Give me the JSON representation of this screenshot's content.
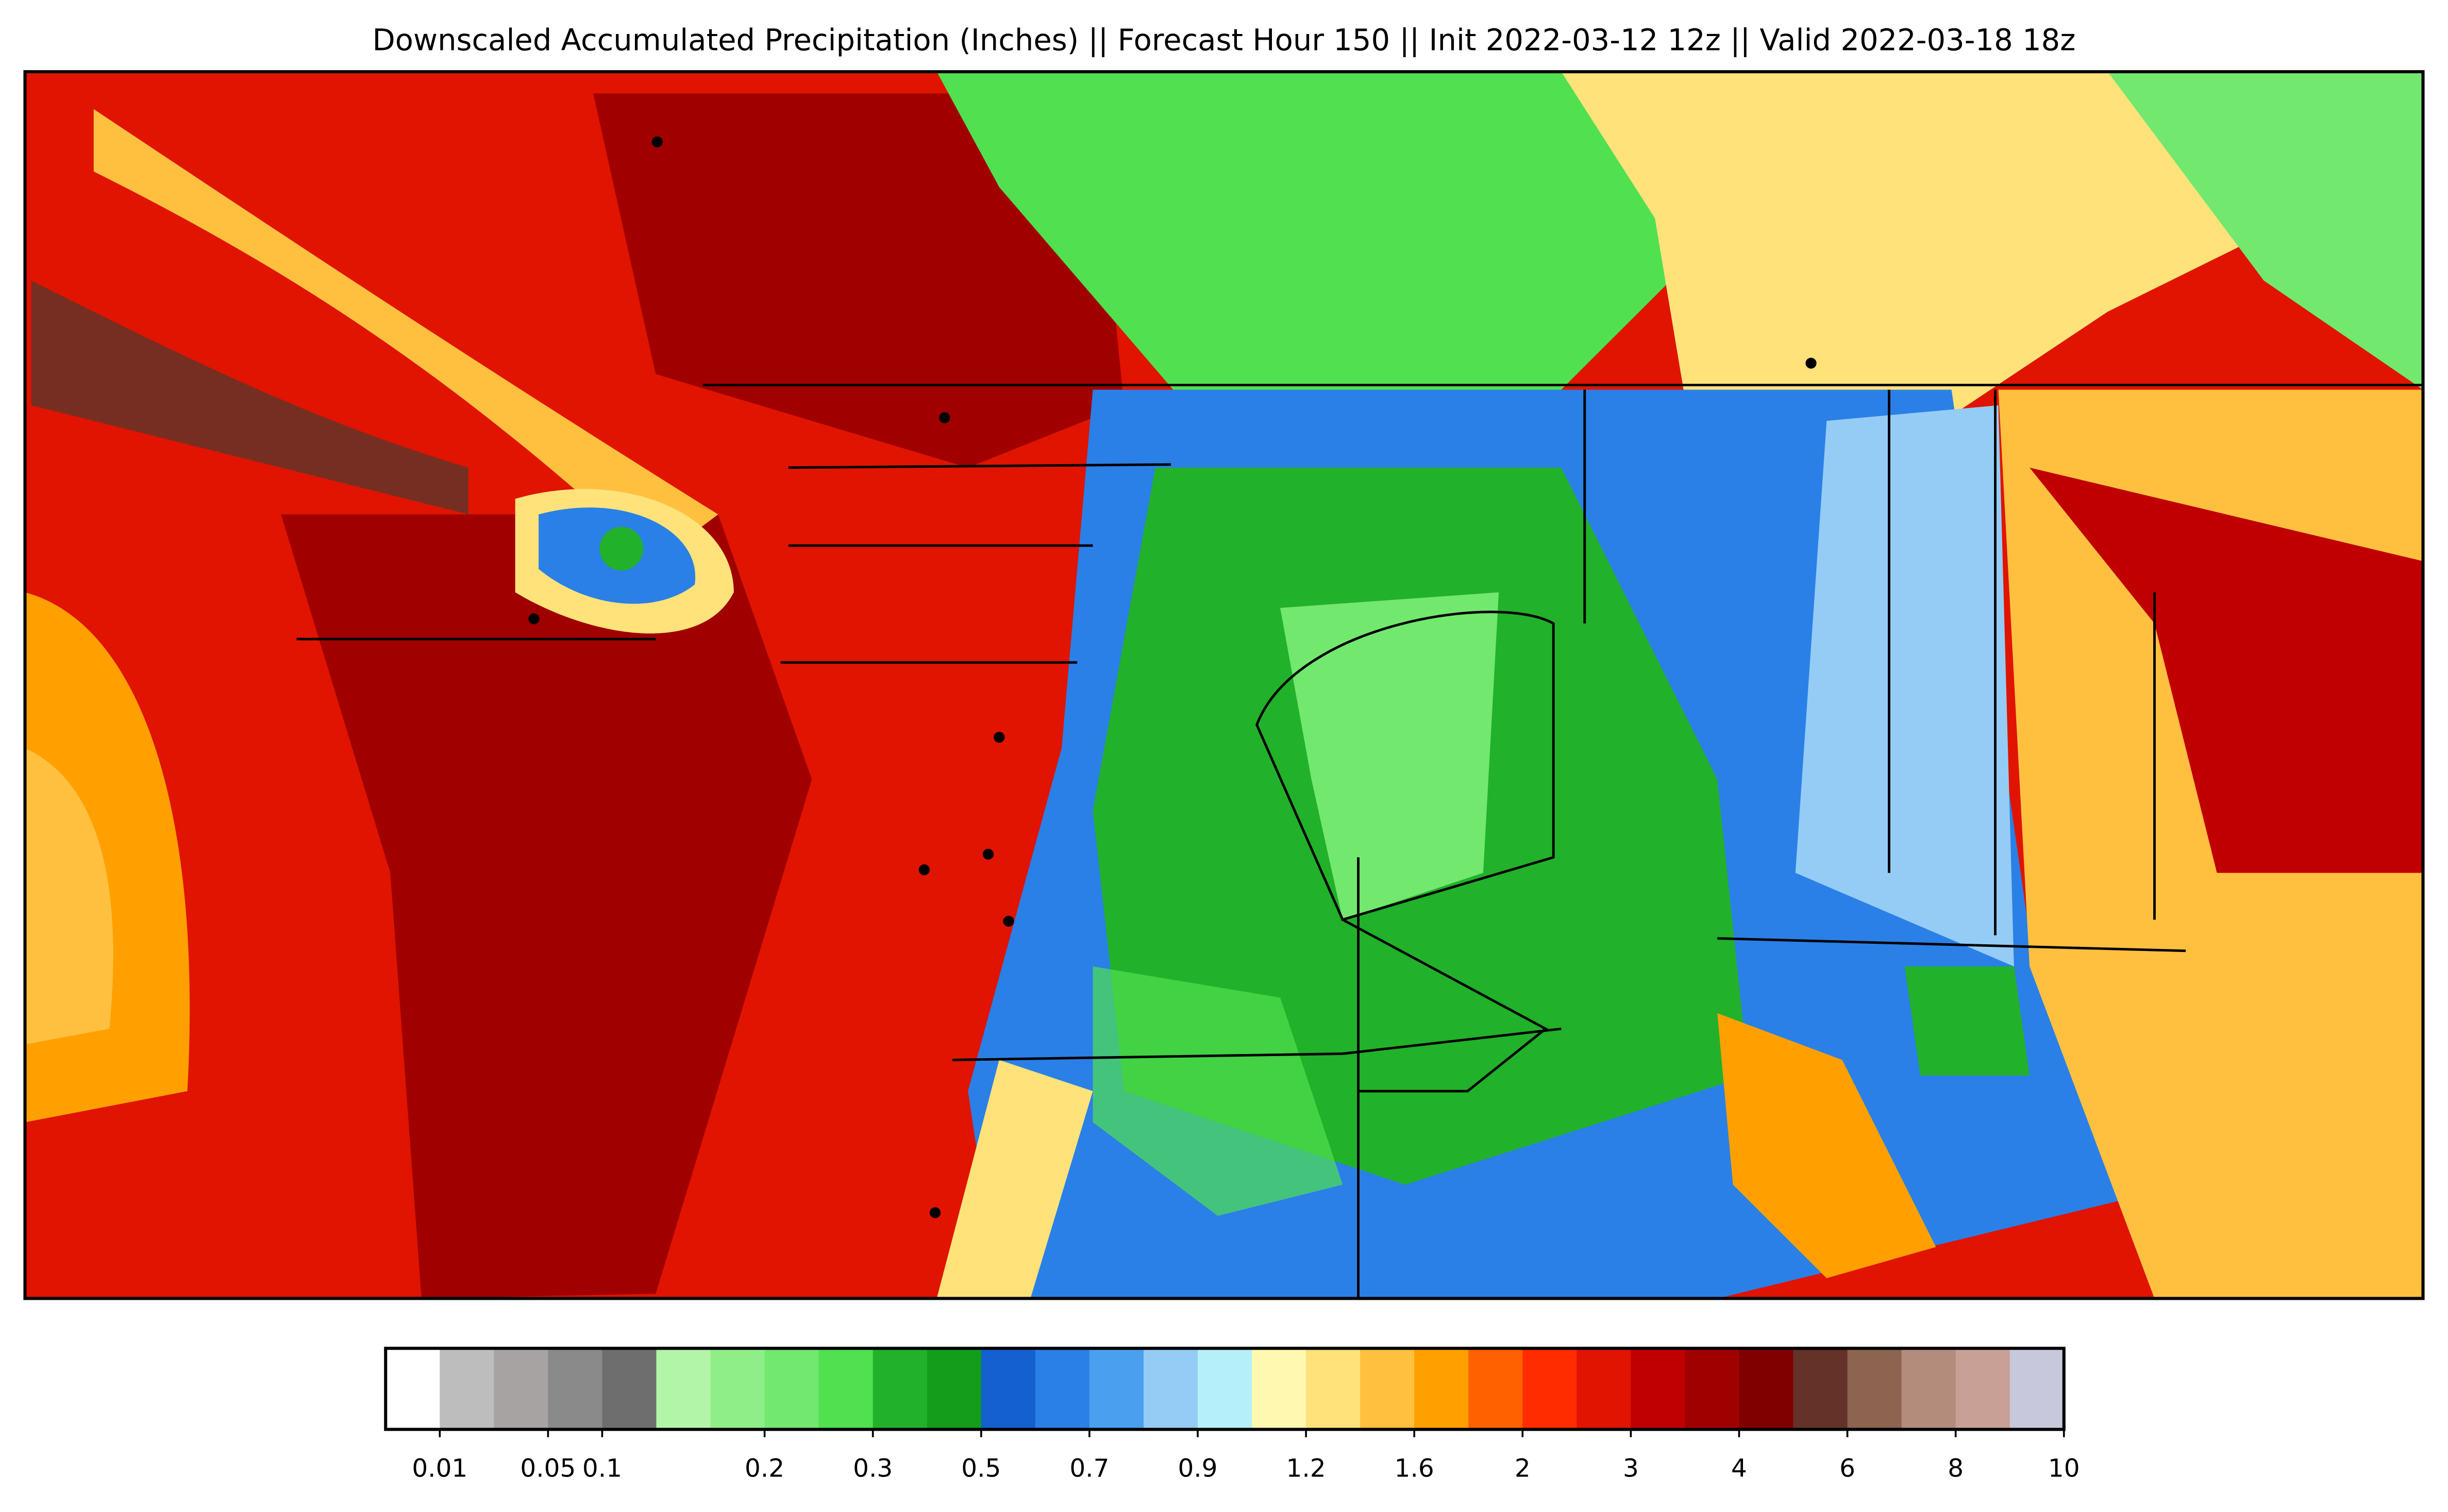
{
  "title": "Downscaled Accumulated Precipitation (Inches) || Forecast Hour 150 || Init 2022-03-12 12z || Valid 2022-03-18 18z",
  "colorbar": {
    "colors": [
      "#ffffff",
      "#bdbdbd",
      "#a8a3a3",
      "#8a8a8a",
      "#6e6e6e",
      "#b3f5a8",
      "#8fee88",
      "#72e86f",
      "#50e050",
      "#22b12a",
      "#129e1a",
      "#1460d0",
      "#2a80e6",
      "#4aa0ee",
      "#94ccf5",
      "#b5f0fa",
      "#fff8b0",
      "#ffe27a",
      "#ffc040",
      "#ffa000",
      "#ff6000",
      "#ff2c00",
      "#e01400",
      "#c00000",
      "#a00000",
      "#800000",
      "#643228",
      "#8c6450",
      "#b48c7c",
      "#c8a096",
      "#c8c8dc"
    ],
    "ticks": [
      {
        "value": 0.01,
        "label": "0.01"
      },
      {
        "value": 0.05,
        "label": "0.05"
      },
      {
        "value": 0.1,
        "label": "0.1"
      },
      {
        "value": 0.2,
        "label": "0.2"
      },
      {
        "value": 0.3,
        "label": "0.3"
      },
      {
        "value": 0.5,
        "label": "0.5"
      },
      {
        "value": 0.7,
        "label": "0.7"
      },
      {
        "value": 0.9,
        "label": "0.9"
      },
      {
        "value": 1.2,
        "label": "1.2"
      },
      {
        "value": 1.6,
        "label": "1.6"
      },
      2,
      3,
      4,
      6,
      8,
      10
    ]
  }
}
